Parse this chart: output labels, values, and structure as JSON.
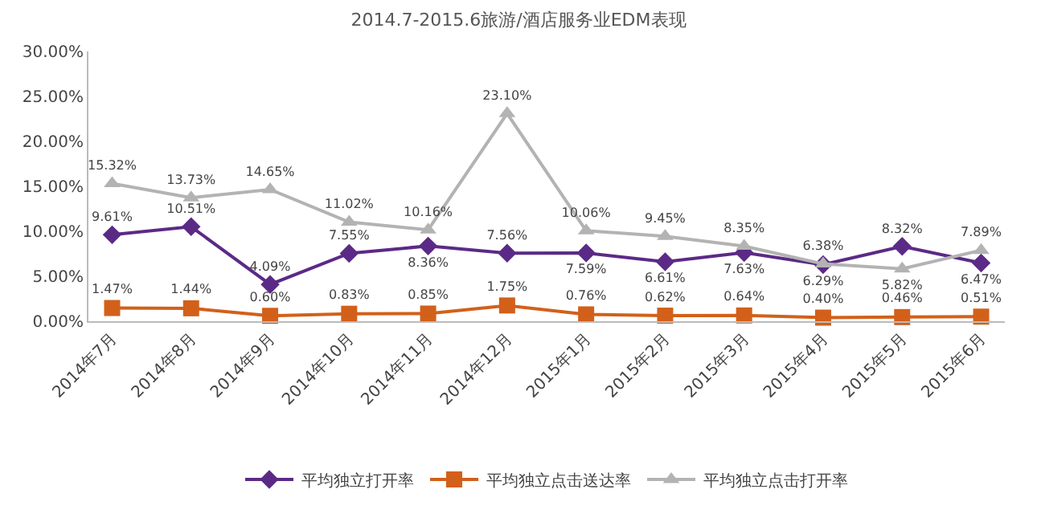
{
  "chart_data": {
    "type": "line",
    "title": "2014.7-2015.6旅游/酒店服务业EDM表现",
    "categories": [
      "2014年7月",
      "2014年8月",
      "2014年9月",
      "2014年10月",
      "2014年11月",
      "2014年12月",
      "2015年1月",
      "2015年2月",
      "2015年3月",
      "2015年4月",
      "2015年5月",
      "2015年6月"
    ],
    "series": [
      {
        "name": "平均独立打开率",
        "color": "#5b2a86",
        "marker": "diamond",
        "values": [
          9.61,
          10.51,
          4.09,
          7.55,
          8.36,
          7.56,
          7.59,
          6.61,
          7.63,
          6.29,
          8.32,
          6.47
        ],
        "value_labels": [
          "9.61%",
          "10.51%",
          "4.09%",
          "7.55%",
          "8.36%",
          "7.56%",
          "7.59%",
          "6.61%",
          "7.63%",
          "6.29%",
          "8.32%",
          "6.47%"
        ]
      },
      {
        "name": "平均独立点击送达率",
        "color": "#d2601a",
        "marker": "square",
        "values": [
          1.47,
          1.44,
          0.6,
          0.83,
          0.85,
          1.75,
          0.76,
          0.62,
          0.64,
          0.4,
          0.46,
          0.51
        ],
        "value_labels": [
          "1.47%",
          "1.44%",
          "0.60%",
          "0.83%",
          "0.85%",
          "1.75%",
          "0.76%",
          "0.62%",
          "0.64%",
          "0.40%",
          "0.46%",
          "0.51%"
        ]
      },
      {
        "name": "平均独立点击打开率",
        "color": "#b3b3b3",
        "marker": "triangle",
        "values": [
          15.32,
          13.73,
          14.65,
          11.02,
          10.16,
          23.1,
          10.06,
          9.45,
          8.35,
          6.38,
          5.82,
          7.89
        ],
        "value_labels": [
          "15.32%",
          "13.73%",
          "14.65%",
          "11.02%",
          "10.16%",
          "23.10%",
          "10.06%",
          "9.45%",
          "8.35%",
          "6.38%",
          "5.82%",
          "7.89%"
        ]
      }
    ],
    "ylim": [
      0,
      30
    ],
    "yticks": [
      {
        "value": 0,
        "label": "0.00%"
      },
      {
        "value": 5,
        "label": "5.00%"
      },
      {
        "value": 10,
        "label": "10.00%"
      },
      {
        "value": 15,
        "label": "15.00%"
      },
      {
        "value": 20,
        "label": "20.00%"
      },
      {
        "value": 25,
        "label": "25.00%"
      },
      {
        "value": 30,
        "label": "30.00%"
      }
    ],
    "legend": "bottom",
    "line_style": "solid"
  }
}
